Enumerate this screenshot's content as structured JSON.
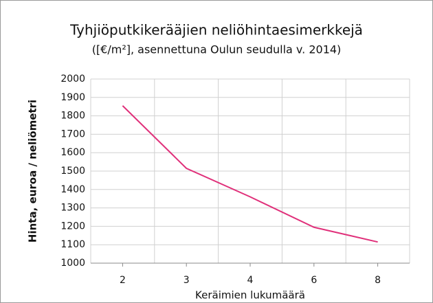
{
  "chart_data": {
    "type": "line",
    "title": "Tyhjiöputkikerääjien neliöhintaesimerkkejä",
    "subtitle": "([€/m²], asennettuna Oulun seudulla v. 2014)",
    "x_label": "Keräimien lukumäärä",
    "y_label": "Hinta, euroa / neliömetri",
    "categories": [
      "2",
      "3",
      "4",
      "6",
      "8"
    ],
    "series": [
      {
        "name": "Hinta",
        "color": "#e0307a",
        "values": [
          1855,
          1515,
          1360,
          1195,
          1115
        ]
      }
    ],
    "ylim": [
      1000,
      2000
    ],
    "yticks": [
      1000,
      1100,
      1200,
      1300,
      1400,
      1500,
      1600,
      1700,
      1800,
      1900,
      2000
    ],
    "grid": true
  }
}
